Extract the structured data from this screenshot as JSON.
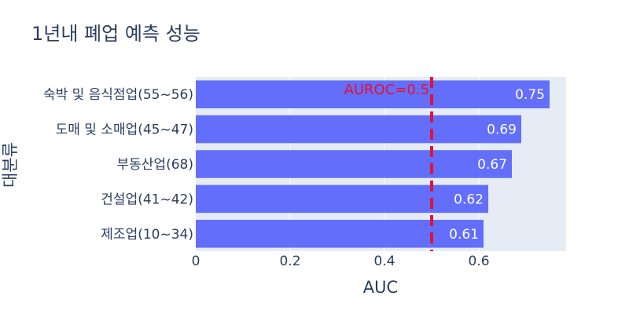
{
  "chart_data": {
    "type": "bar",
    "orientation": "horizontal",
    "title": "1년내 폐업 예측 성능",
    "xlabel": "AUC",
    "ylabel": "대분류",
    "categories": [
      "숙박 및 음식점업(55~56)",
      "도매 및 소매업(45~47)",
      "부동산업(68)",
      "건설업(41~42)",
      "제조업(10~34)"
    ],
    "values": [
      0.75,
      0.69,
      0.67,
      0.62,
      0.61
    ],
    "value_labels": [
      "0.75",
      "0.69",
      "0.67",
      "0.62",
      "0.61"
    ],
    "xlim": [
      0,
      0.785
    ],
    "xticks": [
      0,
      0.2,
      0.4,
      0.6
    ],
    "xtick_labels": [
      "0",
      "0.2",
      "0.4",
      "0.6"
    ],
    "grid": true,
    "bar_color": "#636efa",
    "plot_bg": "#e5ecf6",
    "reference_line": {
      "x": 0.5,
      "label": "AUROC=0.5",
      "color": "#dc143c",
      "style": "dashed"
    }
  }
}
